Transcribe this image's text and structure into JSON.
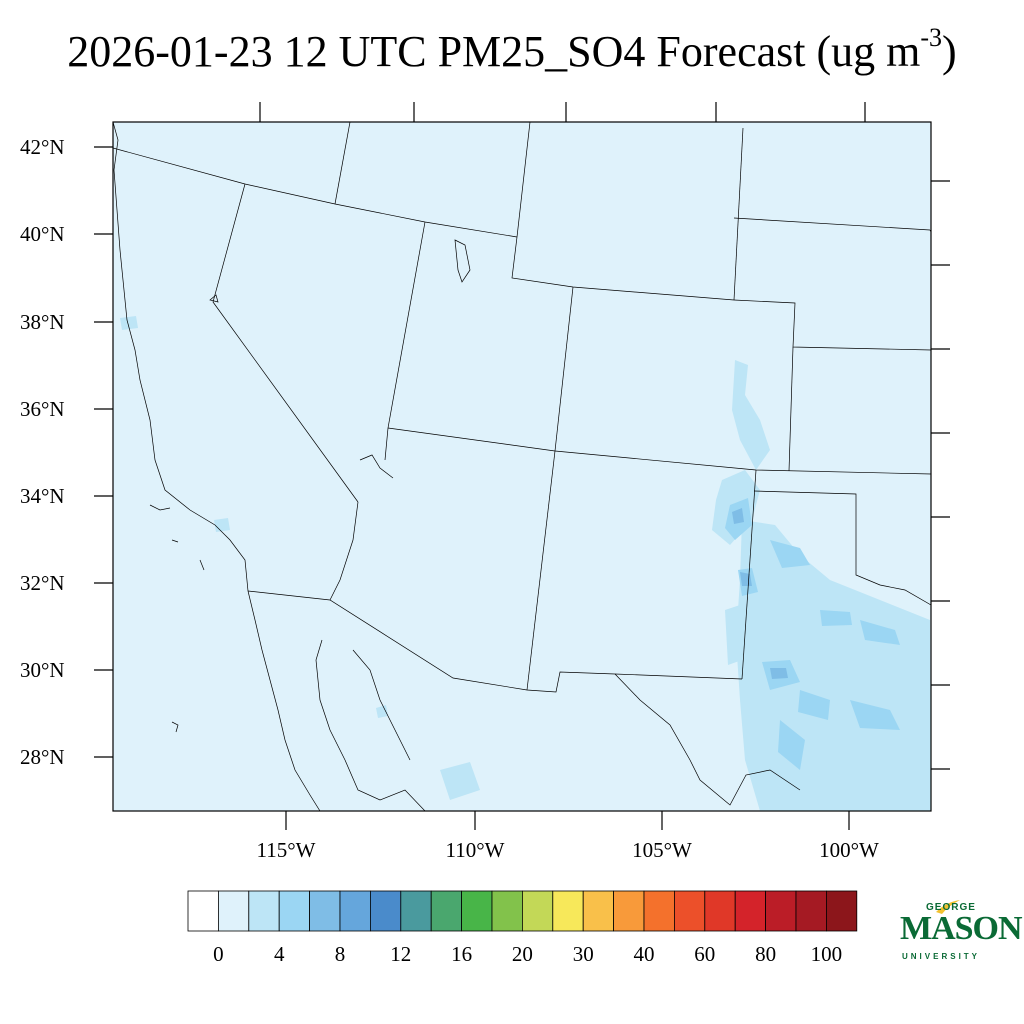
{
  "title": {
    "text": "2026-01-23 12 UTC PM25_SO4 Forecast (ug m",
    "exponent": "-3",
    "close": ")"
  },
  "map": {
    "background_color": "#dff2fb",
    "lat_labels": [
      "42°N",
      "40°N",
      "38°N",
      "36°N",
      "34°N",
      "32°N",
      "30°N",
      "28°N"
    ],
    "lon_labels": [
      "115°W",
      "110°W",
      "105°W",
      "100°W"
    ]
  },
  "colorbar": {
    "colors": [
      "#ffffff",
      "#dff2fb",
      "#bde5f6",
      "#9bd6f3",
      "#7fbde6",
      "#65a6dc",
      "#4a8bcb",
      "#4a9a9e",
      "#4aa76e",
      "#48b548",
      "#82c24b",
      "#c3d857",
      "#f7e85a",
      "#f9c04a",
      "#f89a3a",
      "#f4712c",
      "#ec502a",
      "#e03828",
      "#d4232a",
      "#bb1d27",
      "#a51a23",
      "#8c161b"
    ],
    "tick_labels": [
      "0",
      "4",
      "8",
      "12",
      "16",
      "20",
      "30",
      "40",
      "60",
      "80",
      "100"
    ]
  },
  "logo": {
    "top": "GEORGE",
    "main": "MASON",
    "bottom": "UNIVERSITY"
  }
}
